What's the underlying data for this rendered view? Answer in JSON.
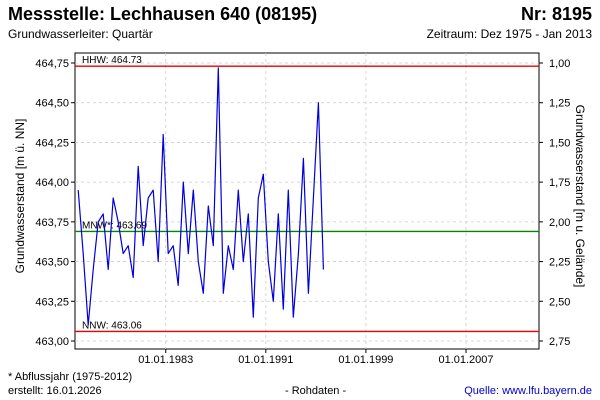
{
  "header": {
    "title": "Messstelle: Lechhausen 640 (08195)",
    "nr": "Nr: 8195",
    "aquifer": "Grundwasserleiter: Quartär",
    "period": "Zeitraum: Dez 1975 - Jan 2013"
  },
  "footer": {
    "note": "* Abflussjahr (1975-2012)",
    "created": "erstellt:  16.01.2026",
    "rawdata": "- Rohdaten -",
    "source": "Quelle: www.lfu.bayern.de"
  },
  "colors": {
    "series": "#0000dd",
    "limit_lines": "#ee0000",
    "mean_line": "#008800",
    "grid": "#cccccc",
    "source_link": "#0000cc"
  },
  "chart_data": {
    "type": "line",
    "ylabel": "Grundwasserstand [m ü. NN]",
    "ylabel_right": "Grundwasserstand [m u. Gelände]",
    "ylim": [
      463.0,
      464.75
    ],
    "yticks": [
      "463,00",
      "463,25",
      "463,50",
      "463,75",
      "464,00",
      "464,25",
      "464,50",
      "464,75"
    ],
    "yticks_right": [
      "2,75",
      "2,50",
      "2,25",
      "2,00",
      "1,75",
      "1,50",
      "1,25",
      "1,00"
    ],
    "xlim": [
      "1975-10-01",
      "2012-11-01"
    ],
    "xticks": [
      "01.01.1983",
      "01.01.1991",
      "01.01.1999",
      "01.01.2007"
    ],
    "grid": true,
    "reference_lines": [
      {
        "label": "HHW: 464.73",
        "value": 464.73,
        "color": "#ee0000"
      },
      {
        "label": "MNW*: 463.69",
        "value": 463.69,
        "color": "#008800"
      },
      {
        "label": "NNW: 463.06",
        "value": 463.06,
        "color": "#ee0000"
      }
    ],
    "series": [
      {
        "x": [
          1976.0,
          1976.4,
          1976.8,
          1977.2,
          1977.6,
          1978.0,
          1978.4,
          1978.8,
          1979.2,
          1979.6,
          1980.0,
          1980.4,
          1980.8,
          1981.2,
          1981.6,
          1982.0,
          1982.4,
          1982.8,
          1983.2,
          1983.6,
          1984.0,
          1984.4,
          1984.8,
          1985.2,
          1985.6,
          1986.0,
          1986.4,
          1986.8,
          1987.2,
          1987.6,
          1988.0,
          1988.4,
          1988.8,
          1989.2,
          1989.6,
          1990.0,
          1990.4,
          1990.8,
          1991.2,
          1991.6,
          1992.0,
          1992.4,
          1992.8,
          1993.2,
          1993.6,
          1994.0,
          1994.4,
          1994.8,
          1995.2,
          1995.6
        ],
        "values": [
          463.95,
          463.55,
          463.1,
          463.45,
          463.75,
          463.8,
          463.45,
          463.9,
          463.75,
          463.55,
          463.6,
          463.4,
          464.1,
          463.6,
          463.9,
          463.95,
          463.5,
          464.3,
          463.55,
          463.6,
          463.35,
          464.0,
          463.55,
          463.95,
          463.5,
          463.3,
          463.85,
          463.6,
          464.72,
          463.3,
          463.6,
          463.45,
          463.95,
          463.5,
          463.8,
          463.15,
          463.9,
          464.05,
          463.5,
          463.25,
          463.8,
          463.2,
          463.95,
          463.15,
          463.55,
          464.15,
          463.3,
          463.9,
          464.5,
          463.45
        ]
      }
    ]
  }
}
